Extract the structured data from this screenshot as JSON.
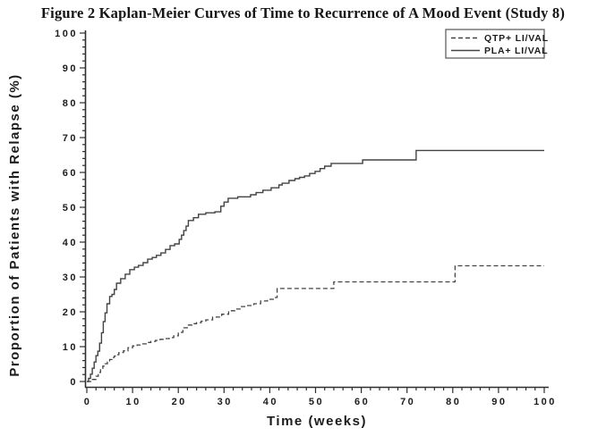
{
  "figure": {
    "title": "Figure 2 Kaplan-Meier Curves of Time to Recurrence of A Mood Event (Study 8)"
  },
  "colors": {
    "axis": "#2e2e2e",
    "line": "#434343",
    "text": "#1c1c1c",
    "background": "#ffffff",
    "legend_border": "#555555"
  },
  "chart_data": {
    "type": "line",
    "subtype": "kaplan-meier-step",
    "title": "Figure 2 Kaplan-Meier Curves of Time to Recurrence of A Mood Event (Study 8)",
    "xlabel": "Time (weeks)",
    "ylabel": "Proportion of Patients with Relapse (%)",
    "xlim": [
      0,
      100
    ],
    "ylim": [
      0,
      100
    ],
    "x_ticks": [
      0,
      10,
      20,
      30,
      40,
      50,
      60,
      70,
      80,
      90,
      100
    ],
    "y_ticks": [
      0,
      10,
      20,
      30,
      40,
      50,
      60,
      70,
      80,
      90,
      100
    ],
    "x_minor_tick_step": 2,
    "y_minor_tick_step": 2,
    "grid": false,
    "legend_position": "top-right",
    "series": [
      {
        "name": "QTP+ LI/VAL",
        "line_style": "dashed",
        "points": [
          [
            0,
            0
          ],
          [
            1,
            0.6
          ],
          [
            2,
            1.5
          ],
          [
            2.5,
            2.6
          ],
          [
            3,
            3.6
          ],
          [
            3.5,
            4.4
          ],
          [
            4,
            5.1
          ],
          [
            4.5,
            5.6
          ],
          [
            5,
            6.3
          ],
          [
            5.5,
            6.9
          ],
          [
            6,
            7.3
          ],
          [
            6.5,
            7.7
          ],
          [
            7,
            8.3
          ],
          [
            8,
            8.8
          ],
          [
            9,
            9.7
          ],
          [
            10,
            10.2
          ],
          [
            11,
            10.5
          ],
          [
            12,
            10.8
          ],
          [
            13,
            11.2
          ],
          [
            14,
            11.5
          ],
          [
            15,
            11.8
          ],
          [
            16,
            12.1
          ],
          [
            17,
            12.3
          ],
          [
            18,
            12.6
          ],
          [
            19,
            13.1
          ],
          [
            20,
            14.1
          ],
          [
            21,
            15.4
          ],
          [
            22,
            16.2
          ],
          [
            23,
            16.6
          ],
          [
            24,
            16.9
          ],
          [
            25,
            17.3
          ],
          [
            26,
            17.7
          ],
          [
            27.5,
            18.5
          ],
          [
            29.5,
            19.3
          ],
          [
            31,
            20.3
          ],
          [
            32.5,
            20.8
          ],
          [
            33.5,
            21.5
          ],
          [
            35,
            21.8
          ],
          [
            36.5,
            22.3
          ],
          [
            38,
            23.1
          ],
          [
            39.5,
            23.6
          ],
          [
            41,
            24.1
          ],
          [
            41.6,
            26.7
          ],
          [
            54,
            28.6
          ],
          [
            80.5,
            33.2
          ],
          [
            100,
            33.2
          ]
        ]
      },
      {
        "name": "PLA+ LI/VAL",
        "line_style": "solid",
        "points": [
          [
            0,
            0
          ],
          [
            0.4,
            0.9
          ],
          [
            0.8,
            2.1
          ],
          [
            1.2,
            3.8
          ],
          [
            1.6,
            5.6
          ],
          [
            2,
            7.4
          ],
          [
            2.4,
            8.7
          ],
          [
            2.8,
            11
          ],
          [
            3.2,
            14
          ],
          [
            3.6,
            17.2
          ],
          [
            4,
            19.7
          ],
          [
            4.4,
            22.3
          ],
          [
            5,
            24.4
          ],
          [
            5.5,
            25
          ],
          [
            6,
            26.4
          ],
          [
            6.5,
            28.2
          ],
          [
            7.4,
            29.5
          ],
          [
            8.4,
            30.8
          ],
          [
            9.4,
            32.1
          ],
          [
            10.4,
            32.8
          ],
          [
            11.3,
            33.3
          ],
          [
            12.3,
            34.1
          ],
          [
            13.3,
            35.1
          ],
          [
            14.3,
            35.6
          ],
          [
            15.2,
            36.2
          ],
          [
            16.2,
            36.9
          ],
          [
            17.2,
            37.9
          ],
          [
            18.2,
            39
          ],
          [
            19.2,
            39.5
          ],
          [
            20.2,
            40.8
          ],
          [
            20.7,
            42
          ],
          [
            21.2,
            43.3
          ],
          [
            21.7,
            44.6
          ],
          [
            22.2,
            46.2
          ],
          [
            23.3,
            47
          ],
          [
            24.4,
            48
          ],
          [
            26,
            48.4
          ],
          [
            28,
            48.7
          ],
          [
            29.3,
            50.3
          ],
          [
            30,
            51.5
          ],
          [
            30.9,
            52.6
          ],
          [
            33,
            53
          ],
          [
            35.8,
            53.6
          ],
          [
            37,
            54.2
          ],
          [
            38.5,
            54.9
          ],
          [
            40.3,
            55.6
          ],
          [
            42,
            56.4
          ],
          [
            42.7,
            56.9
          ],
          [
            44.2,
            57.7
          ],
          [
            45.5,
            58.2
          ],
          [
            46.5,
            58.6
          ],
          [
            47.6,
            59
          ],
          [
            48.7,
            59.7
          ],
          [
            49.9,
            60.3
          ],
          [
            51,
            61.1
          ],
          [
            52,
            61.8
          ],
          [
            53.4,
            62.6
          ],
          [
            60.3,
            63.6
          ],
          [
            72,
            66.3
          ],
          [
            100,
            66.3
          ]
        ]
      }
    ]
  }
}
